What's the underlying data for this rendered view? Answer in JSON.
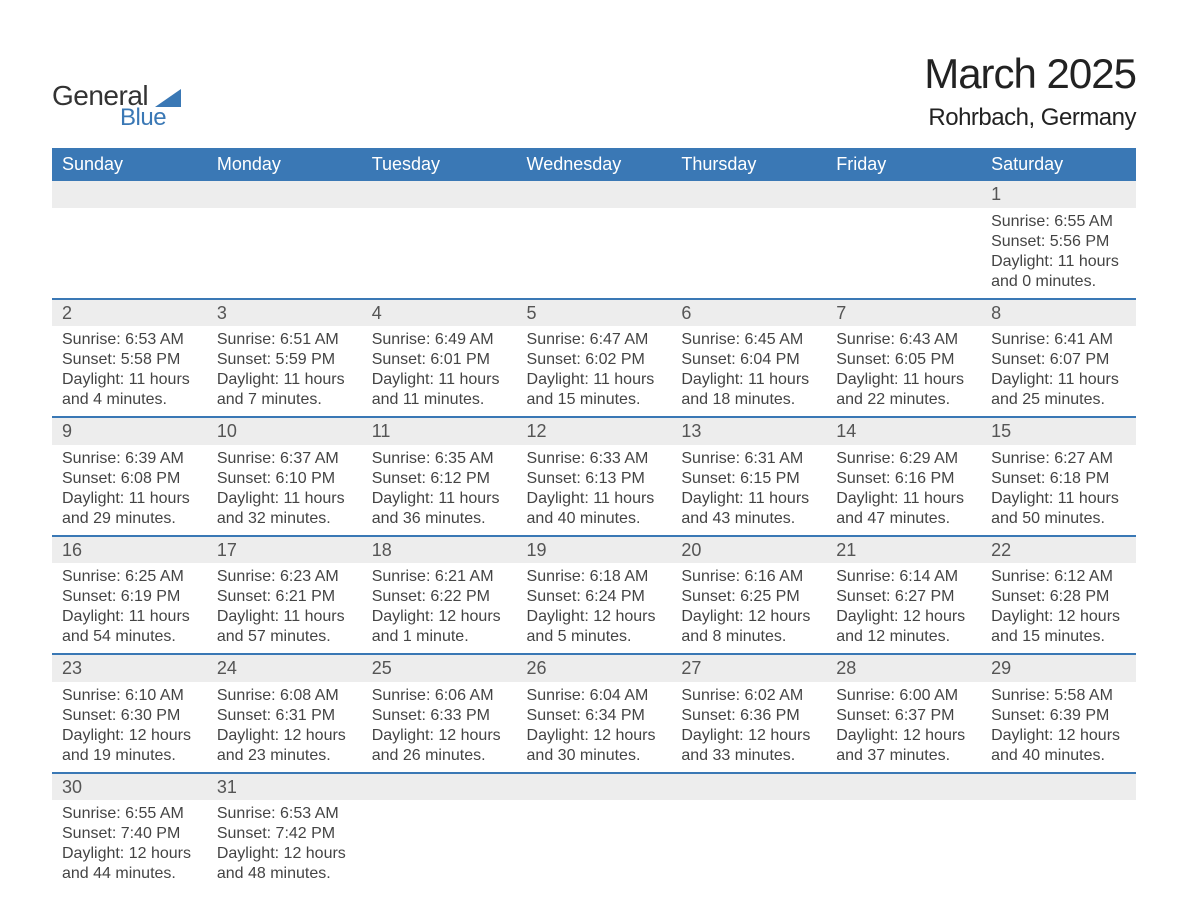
{
  "logo": {
    "text1": "General",
    "text2": "Blue"
  },
  "title": "March 2025",
  "location": "Rohrbach, Germany",
  "colors": {
    "header_bg": "#3a78b5",
    "header_fg": "#ffffff",
    "daynum_bg": "#ededed",
    "row_divider": "#3a78b5",
    "text": "#444444",
    "page_bg": "#ffffff",
    "logo_blue": "#3a78b5"
  },
  "day_headers": [
    "Sunday",
    "Monday",
    "Tuesday",
    "Wednesday",
    "Thursday",
    "Friday",
    "Saturday"
  ],
  "weeks": [
    [
      null,
      null,
      null,
      null,
      null,
      null,
      {
        "day": "1",
        "sunrise": "6:55 AM",
        "sunset": "5:56 PM",
        "daylight": "11 hours and 0 minutes."
      }
    ],
    [
      {
        "day": "2",
        "sunrise": "6:53 AM",
        "sunset": "5:58 PM",
        "daylight": "11 hours and 4 minutes."
      },
      {
        "day": "3",
        "sunrise": "6:51 AM",
        "sunset": "5:59 PM",
        "daylight": "11 hours and 7 minutes."
      },
      {
        "day": "4",
        "sunrise": "6:49 AM",
        "sunset": "6:01 PM",
        "daylight": "11 hours and 11 minutes."
      },
      {
        "day": "5",
        "sunrise": "6:47 AM",
        "sunset": "6:02 PM",
        "daylight": "11 hours and 15 minutes."
      },
      {
        "day": "6",
        "sunrise": "6:45 AM",
        "sunset": "6:04 PM",
        "daylight": "11 hours and 18 minutes."
      },
      {
        "day": "7",
        "sunrise": "6:43 AM",
        "sunset": "6:05 PM",
        "daylight": "11 hours and 22 minutes."
      },
      {
        "day": "8",
        "sunrise": "6:41 AM",
        "sunset": "6:07 PM",
        "daylight": "11 hours and 25 minutes."
      }
    ],
    [
      {
        "day": "9",
        "sunrise": "6:39 AM",
        "sunset": "6:08 PM",
        "daylight": "11 hours and 29 minutes."
      },
      {
        "day": "10",
        "sunrise": "6:37 AM",
        "sunset": "6:10 PM",
        "daylight": "11 hours and 32 minutes."
      },
      {
        "day": "11",
        "sunrise": "6:35 AM",
        "sunset": "6:12 PM",
        "daylight": "11 hours and 36 minutes."
      },
      {
        "day": "12",
        "sunrise": "6:33 AM",
        "sunset": "6:13 PM",
        "daylight": "11 hours and 40 minutes."
      },
      {
        "day": "13",
        "sunrise": "6:31 AM",
        "sunset": "6:15 PM",
        "daylight": "11 hours and 43 minutes."
      },
      {
        "day": "14",
        "sunrise": "6:29 AM",
        "sunset": "6:16 PM",
        "daylight": "11 hours and 47 minutes."
      },
      {
        "day": "15",
        "sunrise": "6:27 AM",
        "sunset": "6:18 PM",
        "daylight": "11 hours and 50 minutes."
      }
    ],
    [
      {
        "day": "16",
        "sunrise": "6:25 AM",
        "sunset": "6:19 PM",
        "daylight": "11 hours and 54 minutes."
      },
      {
        "day": "17",
        "sunrise": "6:23 AM",
        "sunset": "6:21 PM",
        "daylight": "11 hours and 57 minutes."
      },
      {
        "day": "18",
        "sunrise": "6:21 AM",
        "sunset": "6:22 PM",
        "daylight": "12 hours and 1 minute."
      },
      {
        "day": "19",
        "sunrise": "6:18 AM",
        "sunset": "6:24 PM",
        "daylight": "12 hours and 5 minutes."
      },
      {
        "day": "20",
        "sunrise": "6:16 AM",
        "sunset": "6:25 PM",
        "daylight": "12 hours and 8 minutes."
      },
      {
        "day": "21",
        "sunrise": "6:14 AM",
        "sunset": "6:27 PM",
        "daylight": "12 hours and 12 minutes."
      },
      {
        "day": "22",
        "sunrise": "6:12 AM",
        "sunset": "6:28 PM",
        "daylight": "12 hours and 15 minutes."
      }
    ],
    [
      {
        "day": "23",
        "sunrise": "6:10 AM",
        "sunset": "6:30 PM",
        "daylight": "12 hours and 19 minutes."
      },
      {
        "day": "24",
        "sunrise": "6:08 AM",
        "sunset": "6:31 PM",
        "daylight": "12 hours and 23 minutes."
      },
      {
        "day": "25",
        "sunrise": "6:06 AM",
        "sunset": "6:33 PM",
        "daylight": "12 hours and 26 minutes."
      },
      {
        "day": "26",
        "sunrise": "6:04 AM",
        "sunset": "6:34 PM",
        "daylight": "12 hours and 30 minutes."
      },
      {
        "day": "27",
        "sunrise": "6:02 AM",
        "sunset": "6:36 PM",
        "daylight": "12 hours and 33 minutes."
      },
      {
        "day": "28",
        "sunrise": "6:00 AM",
        "sunset": "6:37 PM",
        "daylight": "12 hours and 37 minutes."
      },
      {
        "day": "29",
        "sunrise": "5:58 AM",
        "sunset": "6:39 PM",
        "daylight": "12 hours and 40 minutes."
      }
    ],
    [
      {
        "day": "30",
        "sunrise": "6:55 AM",
        "sunset": "7:40 PM",
        "daylight": "12 hours and 44 minutes."
      },
      {
        "day": "31",
        "sunrise": "6:53 AM",
        "sunset": "7:42 PM",
        "daylight": "12 hours and 48 minutes."
      },
      null,
      null,
      null,
      null,
      null
    ]
  ],
  "labels": {
    "sunrise_prefix": "Sunrise: ",
    "sunset_prefix": "Sunset: ",
    "daylight_prefix": "Daylight: "
  }
}
